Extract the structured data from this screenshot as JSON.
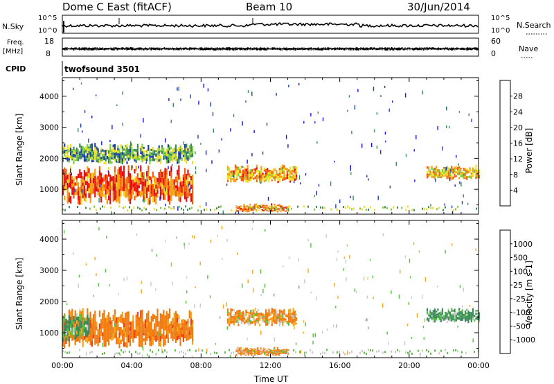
{
  "header": {
    "station": "Dome C East (fitACF)",
    "beam": "Beam 10",
    "date": "30/Jun/2014"
  },
  "status": {
    "nsky_label": "N.Sky",
    "nsky_ticks": [
      "10^5",
      "10^0"
    ],
    "nsearch_label": "N.Search",
    "nsearch_ticks": [
      "10^5",
      "10^0"
    ],
    "freq_label_1": "Freq.",
    "freq_label_2": "[MHz]",
    "freq_ticks": [
      "18",
      "8"
    ],
    "nave_label": "Nave",
    "nave_ticks": [
      "60",
      "0"
    ],
    "cpid_label": "CPID",
    "cpid_value": "twofsound 3501"
  },
  "colors": {
    "power_scale": [
      "#1010ff",
      "#1f3fa8",
      "#3c8a5a",
      "#7fcf3a",
      "#f0e020",
      "#f5a010",
      "#f06010",
      "#e51010"
    ],
    "velocity_scale": [
      "#e51010",
      "#f04010",
      "#f07c10",
      "#f5a816",
      "#c8c8c8",
      "#58c040",
      "#3a8a5a",
      "#1f4fa0",
      "#1818c8"
    ]
  },
  "chart_data": [
    {
      "type": "heatmap",
      "panel": "power",
      "ylabel": "Slant Range [km]",
      "y_ticks": [
        "1000",
        "2000",
        "3000",
        "4000"
      ],
      "ylim": [
        200,
        4600
      ],
      "x_ticks": [
        "00:00",
        "04:00",
        "08:00",
        "12:00",
        "16:00",
        "20:00",
        "00:00"
      ],
      "xlim_hours": [
        0,
        24
      ],
      "colorbar_label": "Power [dB]",
      "colorbar_ticks": [
        "4",
        "8",
        "12",
        "16",
        "20",
        "24",
        "28"
      ],
      "colorbar_range": [
        0,
        32
      ],
      "regions": [
        {
          "t0": 0.0,
          "t1": 7.5,
          "r0": 500,
          "r1": 1800,
          "value": 26
        },
        {
          "t0": 0.0,
          "t1": 7.5,
          "r0": 1800,
          "r1": 2500,
          "value": 12
        },
        {
          "t0": 9.5,
          "t1": 13.5,
          "r0": 1200,
          "r1": 1800,
          "value": 22
        },
        {
          "t0": 10.0,
          "t1": 13.0,
          "r0": 250,
          "r1": 550,
          "value": 24
        },
        {
          "t0": 21.0,
          "t1": 24.0,
          "r0": 1300,
          "r1": 1800,
          "value": 20
        }
      ]
    },
    {
      "type": "heatmap",
      "panel": "velocity",
      "ylabel": "Slant Range [km]",
      "y_ticks": [
        "1000",
        "2000",
        "3000",
        "4000"
      ],
      "ylim": [
        200,
        4600
      ],
      "x_ticks": [
        "00:00",
        "04:00",
        "08:00",
        "12:00",
        "16:00",
        "20:00",
        "00:00"
      ],
      "xlim_hours": [
        0,
        24
      ],
      "xlabel": "Time UT",
      "colorbar_label": "Velocity [m s-1]",
      "colorbar_ticks": [
        "1000",
        "500",
        "100",
        "25",
        "-25",
        "-100",
        "-500",
        "-1000"
      ],
      "regions": [
        {
          "t0": 0.0,
          "t1": 7.5,
          "r0": 500,
          "r1": 1800,
          "value": -300
        },
        {
          "t0": 0.0,
          "t1": 1.5,
          "r0": 700,
          "r1": 1700,
          "value": 150
        },
        {
          "t0": 9.5,
          "t1": 13.5,
          "r0": 1200,
          "r1": 1800,
          "value": -150
        },
        {
          "t0": 10.0,
          "t1": 13.0,
          "r0": 250,
          "r1": 550,
          "value": -250
        },
        {
          "t0": 21.0,
          "t1": 24.0,
          "r0": 1300,
          "r1": 1800,
          "value": 200
        }
      ]
    }
  ]
}
